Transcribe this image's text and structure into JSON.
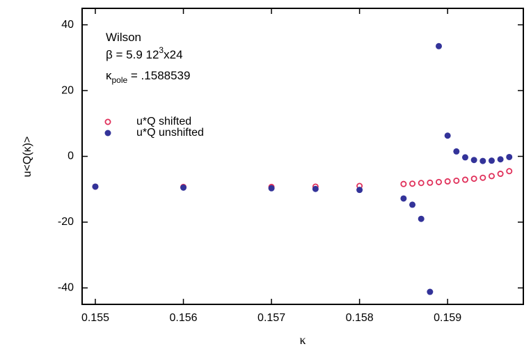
{
  "chart_data": {
    "type": "scatter",
    "xlabel": "κ",
    "ylabel": "u<Q(κ)>",
    "annotations": [
      [
        "Wilson"
      ],
      [
        "β = 5.9 12",
        "3",
        "x24"
      ],
      [
        "κ",
        "pole",
        " = .1588539"
      ]
    ],
    "xlim": [
      0.15485,
      0.15986
    ],
    "ylim": [
      -45,
      45
    ],
    "xticks": [
      0.155,
      0.156,
      0.157,
      0.158,
      0.159
    ],
    "yticks": [
      -40,
      -20,
      0,
      20,
      40
    ],
    "legend": "upper left",
    "series": [
      {
        "name": "u*Q shifted",
        "color": "#e0305a",
        "marker": "open",
        "x": [
          0.155,
          0.156,
          0.157,
          0.1575,
          0.158,
          0.1585,
          0.1586,
          0.1587,
          0.1588,
          0.1589,
          0.159,
          0.1591,
          0.1592,
          0.1593,
          0.1594,
          0.1595,
          0.1596,
          0.1597
        ],
        "values": [
          -9.2,
          -9.3,
          -9.3,
          -9.2,
          -9.0,
          -8.4,
          -8.3,
          -8.1,
          -8.0,
          -7.8,
          -7.6,
          -7.4,
          -7.1,
          -6.8,
          -6.5,
          -6.0,
          -5.3,
          -4.5
        ]
      },
      {
        "name": "u*Q unshifted",
        "color": "#333399",
        "marker": "filled",
        "x": [
          0.155,
          0.156,
          0.157,
          0.1575,
          0.158,
          0.1585,
          0.1586,
          0.1587,
          0.1588,
          0.1589,
          0.159,
          0.1591,
          0.1592,
          0.1593,
          0.1594,
          0.1595,
          0.1596,
          0.1597
        ],
        "values": [
          -9.2,
          -9.5,
          -9.7,
          -9.9,
          -10.2,
          -12.8,
          -14.7,
          -19.0,
          -41.2,
          33.5,
          6.3,
          1.5,
          -0.3,
          -1.1,
          -1.4,
          -1.3,
          -0.9,
          -0.2
        ]
      }
    ]
  }
}
